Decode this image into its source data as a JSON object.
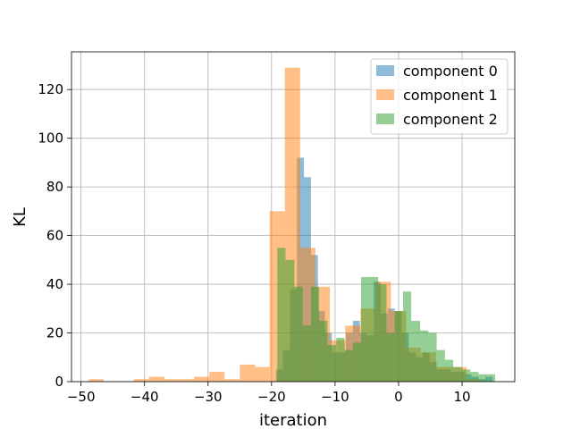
{
  "chart_data": {
    "type": "bar",
    "subtype": "histogram",
    "title": "",
    "xlabel": "iteration",
    "ylabel": "KL",
    "xlim": [
      -51.5,
      18.3
    ],
    "ylim": [
      0,
      135.5
    ],
    "xticks": [
      -50,
      -40,
      -30,
      -20,
      -10,
      0,
      10
    ],
    "yticks": [
      0,
      20,
      40,
      60,
      80,
      100,
      120
    ],
    "grid": true,
    "legend_position": "top-right",
    "series": [
      {
        "name": "component 0",
        "color": "#1f77b4",
        "alpha": 0.5,
        "bins": [
          {
            "x0": -20.4,
            "x1": -19.3,
            "count": 0
          },
          {
            "x0": -19.3,
            "x1": -18.2,
            "count": 5
          },
          {
            "x0": -18.2,
            "x1": -17.1,
            "count": 13
          },
          {
            "x0": -17.1,
            "x1": -16.0,
            "count": 38
          },
          {
            "x0": -16.0,
            "x1": -14.9,
            "count": 92
          },
          {
            "x0": -14.9,
            "x1": -13.8,
            "count": 84
          },
          {
            "x0": -13.8,
            "x1": -12.7,
            "count": 52
          },
          {
            "x0": -12.7,
            "x1": -11.6,
            "count": 29
          },
          {
            "x0": -11.6,
            "x1": -10.5,
            "count": 20
          },
          {
            "x0": -10.5,
            "x1": -9.4,
            "count": 12
          },
          {
            "x0": -9.4,
            "x1": -8.3,
            "count": 12
          },
          {
            "x0": -8.3,
            "x1": -7.2,
            "count": 20
          },
          {
            "x0": -7.2,
            "x1": -6.1,
            "count": 25
          },
          {
            "x0": -6.1,
            "x1": -5.0,
            "count": 20
          },
          {
            "x0": -5.0,
            "x1": -3.9,
            "count": 19
          },
          {
            "x0": -3.9,
            "x1": -2.8,
            "count": 41
          },
          {
            "x0": -2.8,
            "x1": -1.7,
            "count": 28
          },
          {
            "x0": -1.7,
            "x1": -0.6,
            "count": 30
          },
          {
            "x0": -0.6,
            "x1": 0.5,
            "count": 29
          },
          {
            "x0": 0.5,
            "x1": 1.6,
            "count": 20
          },
          {
            "x0": 1.6,
            "x1": 2.7,
            "count": 12
          },
          {
            "x0": 2.7,
            "x1": 3.8,
            "count": 10
          },
          {
            "x0": 3.8,
            "x1": 4.9,
            "count": 12
          },
          {
            "x0": 4.9,
            "x1": 6.0,
            "count": 8
          },
          {
            "x0": 6.0,
            "x1": 7.1,
            "count": 5
          },
          {
            "x0": 7.1,
            "x1": 8.2,
            "count": 5
          },
          {
            "x0": 8.2,
            "x1": 9.3,
            "count": 4
          },
          {
            "x0": 9.3,
            "x1": 10.4,
            "count": 4
          },
          {
            "x0": 10.4,
            "x1": 11.5,
            "count": 3
          },
          {
            "x0": 11.5,
            "x1": 12.6,
            "count": 2
          },
          {
            "x0": 12.6,
            "x1": 13.7,
            "count": 1
          },
          {
            "x0": 13.7,
            "x1": 14.8,
            "count": 2
          }
        ]
      },
      {
        "name": "component 1",
        "color": "#ff7f0e",
        "alpha": 0.5,
        "bins": [
          {
            "x0": -48.8,
            "x1": -46.4,
            "count": 1
          },
          {
            "x0": -46.4,
            "x1": -44.0,
            "count": 0
          },
          {
            "x0": -44.0,
            "x1": -41.7,
            "count": 0
          },
          {
            "x0": -41.7,
            "x1": -39.3,
            "count": 1
          },
          {
            "x0": -39.3,
            "x1": -36.9,
            "count": 2
          },
          {
            "x0": -36.9,
            "x1": -34.5,
            "count": 1
          },
          {
            "x0": -34.5,
            "x1": -32.2,
            "count": 1
          },
          {
            "x0": -32.2,
            "x1": -29.8,
            "count": 2
          },
          {
            "x0": -29.8,
            "x1": -27.4,
            "count": 4
          },
          {
            "x0": -27.4,
            "x1": -25.0,
            "count": 1
          },
          {
            "x0": -25.0,
            "x1": -22.6,
            "count": 7
          },
          {
            "x0": -22.6,
            "x1": -20.3,
            "count": 6
          },
          {
            "x0": -20.3,
            "x1": -17.9,
            "count": 70
          },
          {
            "x0": -17.9,
            "x1": -15.5,
            "count": 129
          },
          {
            "x0": -15.5,
            "x1": -13.1,
            "count": 55
          },
          {
            "x0": -13.1,
            "x1": -10.8,
            "count": 39
          },
          {
            "x0": -10.8,
            "x1": -8.4,
            "count": 17
          },
          {
            "x0": -8.4,
            "x1": -6.0,
            "count": 23
          },
          {
            "x0": -6.0,
            "x1": -3.6,
            "count": 30
          },
          {
            "x0": -3.6,
            "x1": -1.2,
            "count": 41
          },
          {
            "x0": -1.2,
            "x1": 1.2,
            "count": 29
          },
          {
            "x0": 1.2,
            "x1": 3.5,
            "count": 14
          },
          {
            "x0": 3.5,
            "x1": 5.9,
            "count": 12
          },
          {
            "x0": 5.9,
            "x1": 8.3,
            "count": 6
          },
          {
            "x0": 8.3,
            "x1": 10.7,
            "count": 6
          },
          {
            "x0": 10.7,
            "x1": 13.1,
            "count": 1
          }
        ]
      },
      {
        "name": "component 2",
        "color": "#2ca02c",
        "alpha": 0.5,
        "bins": [
          {
            "x0": -20.4,
            "x1": -19.1,
            "count": 0
          },
          {
            "x0": -19.1,
            "x1": -17.8,
            "count": 55
          },
          {
            "x0": -17.8,
            "x1": -16.4,
            "count": 50
          },
          {
            "x0": -16.4,
            "x1": -15.1,
            "count": 39
          },
          {
            "x0": -15.1,
            "x1": -13.8,
            "count": 23
          },
          {
            "x0": -13.8,
            "x1": -12.5,
            "count": 39
          },
          {
            "x0": -12.5,
            "x1": -11.2,
            "count": 25
          },
          {
            "x0": -11.2,
            "x1": -9.8,
            "count": 15
          },
          {
            "x0": -9.8,
            "x1": -8.5,
            "count": 18
          },
          {
            "x0": -8.5,
            "x1": -7.2,
            "count": 13
          },
          {
            "x0": -7.2,
            "x1": -5.9,
            "count": 16
          },
          {
            "x0": -5.9,
            "x1": -4.6,
            "count": 43
          },
          {
            "x0": -4.6,
            "x1": -3.2,
            "count": 43
          },
          {
            "x0": -3.2,
            "x1": -1.9,
            "count": 40
          },
          {
            "x0": -1.9,
            "x1": -0.6,
            "count": 20
          },
          {
            "x0": -0.6,
            "x1": 0.7,
            "count": 29
          },
          {
            "x0": 0.7,
            "x1": 2.0,
            "count": 37
          },
          {
            "x0": 2.0,
            "x1": 3.4,
            "count": 25
          },
          {
            "x0": 3.4,
            "x1": 4.7,
            "count": 21
          },
          {
            "x0": 4.7,
            "x1": 6.0,
            "count": 20
          },
          {
            "x0": 6.0,
            "x1": 7.3,
            "count": 13
          },
          {
            "x0": 7.3,
            "x1": 8.6,
            "count": 9
          },
          {
            "x0": 8.6,
            "x1": 10.0,
            "count": 6
          },
          {
            "x0": 10.0,
            "x1": 11.3,
            "count": 5
          },
          {
            "x0": 11.3,
            "x1": 12.6,
            "count": 4
          },
          {
            "x0": 12.6,
            "x1": 13.9,
            "count": 3
          },
          {
            "x0": 13.9,
            "x1": 15.2,
            "count": 3
          }
        ]
      }
    ]
  }
}
